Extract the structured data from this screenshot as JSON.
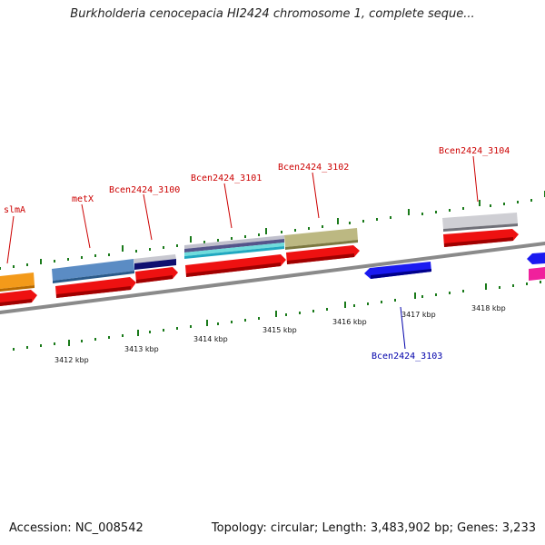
{
  "title": "Burkholderia cenocepacia HI2424 chromosome 1, complete seque...",
  "accession": "Accession: NC_008542",
  "summary": "Topology: circular; Length: 3,483,902 bp; Genes: 3,233",
  "colors": {
    "cds_arrow": "#ee1111",
    "reverse_gene": "#1a1af0",
    "backbone": "#888888",
    "tick_green": "#1a7a1a",
    "label_forward": "#cc0000",
    "label_reverse": "#0000aa"
  },
  "genes": {
    "slmA": "slmA",
    "metX": "metX",
    "g3100": "Bcen2424_3100",
    "g3101": "Bcen2424_3101",
    "g3102": "Bcen2424_3102",
    "g3103": "Bcen2424_3103",
    "g3104": "Bcen2424_3104"
  },
  "ticks": {
    "t3412": "3412 kbp",
    "t3413": "3413 kbp",
    "t3414": "3414 kbp",
    "t3415": "3415 kbp",
    "t3416": "3416 kbp",
    "t3417": "3417 kbp",
    "t3418": "3418 kbp"
  }
}
